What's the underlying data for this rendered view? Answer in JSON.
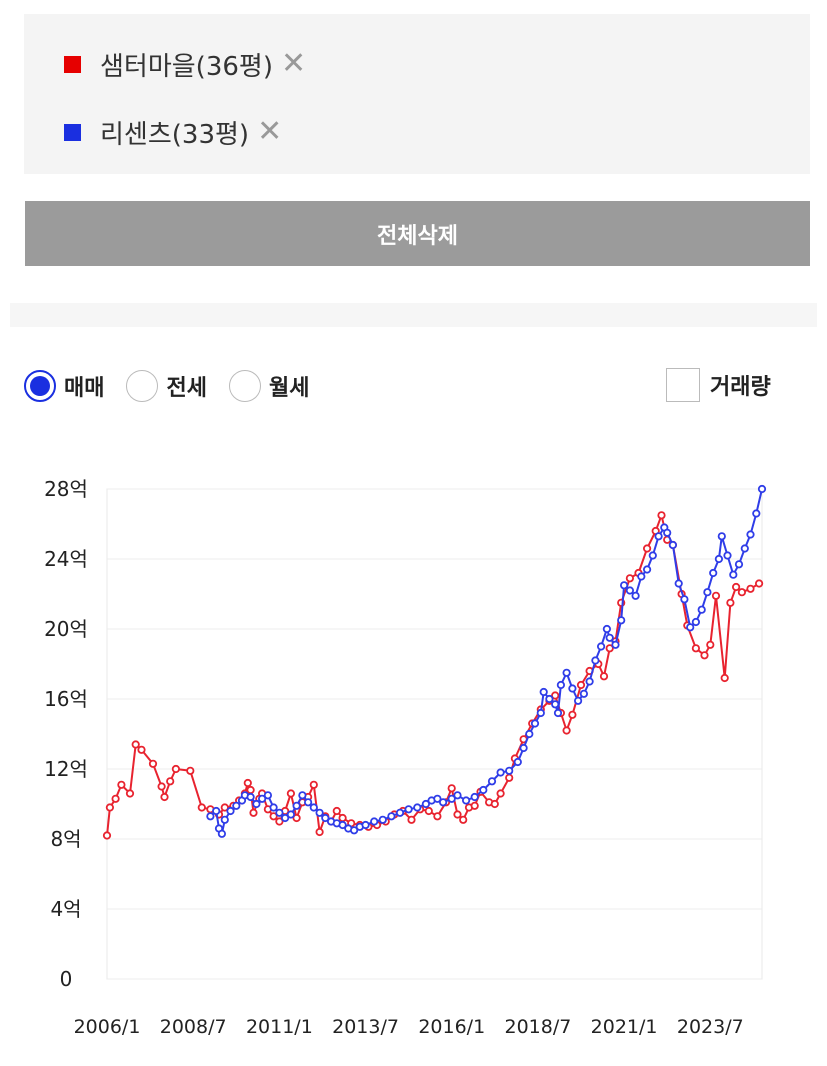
{
  "filters": {
    "items": [
      {
        "label": "샘터마을(36평)",
        "color": "#e60000",
        "remove_icon": "close-icon",
        "remove_glyph": "✕"
      },
      {
        "label": "리센츠(33평)",
        "color": "#1a2fe0",
        "remove_icon": "close-icon",
        "remove_glyph": "✕"
      }
    ],
    "delete_all_label": "전체삭제"
  },
  "options": {
    "trade_types": [
      {
        "label": "매매",
        "selected": true
      },
      {
        "label": "전세",
        "selected": false
      },
      {
        "label": "월세",
        "selected": false
      }
    ],
    "volume": {
      "label": "거래량",
      "checked": false
    }
  },
  "chart_data": {
    "type": "line",
    "y_unit": "억",
    "ylim": [
      0,
      28
    ],
    "y_ticks": [
      "0",
      "4억",
      "8억",
      "12억",
      "16억",
      "20억",
      "24억",
      "28억"
    ],
    "x_ticks": [
      "2006/1",
      "2008/7",
      "2011/1",
      "2013/7",
      "2016/1",
      "2018/7",
      "2021/1",
      "2023/7"
    ],
    "grid": true,
    "series": [
      {
        "name": "샘터마을(36평)",
        "color": "#e8232f",
        "points": [
          [
            "2006-01",
            8.2
          ],
          [
            "2006-02",
            9.8
          ],
          [
            "2006-04",
            10.3
          ],
          [
            "2006-06",
            11.1
          ],
          [
            "2006-09",
            10.6
          ],
          [
            "2006-11",
            13.4
          ],
          [
            "2007-01",
            13.1
          ],
          [
            "2007-05",
            12.3
          ],
          [
            "2007-08",
            11.0
          ],
          [
            "2007-09",
            10.4
          ],
          [
            "2007-11",
            11.3
          ],
          [
            "2008-01",
            12.0
          ],
          [
            "2008-06",
            11.9
          ],
          [
            "2008-10",
            9.8
          ],
          [
            "2009-01",
            9.7
          ],
          [
            "2009-04",
            9.4
          ],
          [
            "2009-06",
            9.8
          ],
          [
            "2009-09",
            9.9
          ],
          [
            "2009-11",
            10.2
          ],
          [
            "2010-01",
            10.6
          ],
          [
            "2010-02",
            11.2
          ],
          [
            "2010-03",
            10.8
          ],
          [
            "2010-04",
            9.5
          ],
          [
            "2010-06",
            10.3
          ],
          [
            "2010-07",
            10.6
          ],
          [
            "2010-09",
            9.7
          ],
          [
            "2010-11",
            9.3
          ],
          [
            "2011-01",
            9.0
          ],
          [
            "2011-03",
            9.6
          ],
          [
            "2011-05",
            10.6
          ],
          [
            "2011-07",
            9.2
          ],
          [
            "2011-09",
            10.1
          ],
          [
            "2011-11",
            10.4
          ],
          [
            "2012-01",
            11.1
          ],
          [
            "2012-03",
            8.4
          ],
          [
            "2012-05",
            9.3
          ],
          [
            "2012-07",
            9.0
          ],
          [
            "2012-09",
            9.6
          ],
          [
            "2012-11",
            9.2
          ],
          [
            "2013-02",
            8.9
          ],
          [
            "2013-05",
            8.8
          ],
          [
            "2013-08",
            8.7
          ],
          [
            "2013-11",
            8.8
          ],
          [
            "2014-02",
            9.0
          ],
          [
            "2014-05",
            9.4
          ],
          [
            "2014-08",
            9.6
          ],
          [
            "2014-11",
            9.1
          ],
          [
            "2015-02",
            9.7
          ],
          [
            "2015-05",
            9.6
          ],
          [
            "2015-08",
            9.3
          ],
          [
            "2015-11",
            10.1
          ],
          [
            "2016-01",
            10.9
          ],
          [
            "2016-03",
            9.4
          ],
          [
            "2016-05",
            9.1
          ],
          [
            "2016-07",
            9.8
          ],
          [
            "2016-09",
            9.9
          ],
          [
            "2016-11",
            10.7
          ],
          [
            "2017-02",
            10.1
          ],
          [
            "2017-04",
            10.0
          ],
          [
            "2017-06",
            10.6
          ],
          [
            "2017-09",
            11.5
          ],
          [
            "2017-11",
            12.6
          ],
          [
            "2018-02",
            13.7
          ],
          [
            "2018-05",
            14.6
          ],
          [
            "2018-08",
            15.4
          ],
          [
            "2018-11",
            15.9
          ],
          [
            "2019-01",
            16.2
          ],
          [
            "2019-03",
            15.2
          ],
          [
            "2019-05",
            14.2
          ],
          [
            "2019-07",
            15.1
          ],
          [
            "2019-10",
            16.8
          ],
          [
            "2020-01",
            17.6
          ],
          [
            "2020-04",
            18.0
          ],
          [
            "2020-06",
            17.3
          ],
          [
            "2020-08",
            18.9
          ],
          [
            "2020-10",
            19.3
          ],
          [
            "2020-12",
            21.5
          ],
          [
            "2021-03",
            22.9
          ],
          [
            "2021-06",
            23.2
          ],
          [
            "2021-09",
            24.6
          ],
          [
            "2021-12",
            25.6
          ],
          [
            "2022-02",
            26.5
          ],
          [
            "2022-04",
            25.1
          ],
          [
            "2022-06",
            24.8
          ],
          [
            "2022-09",
            22.0
          ],
          [
            "2022-11",
            20.2
          ],
          [
            "2023-02",
            18.9
          ],
          [
            "2023-05",
            18.5
          ],
          [
            "2023-07",
            19.1
          ],
          [
            "2023-09",
            21.9
          ],
          [
            "2023-12",
            17.2
          ],
          [
            "2024-02",
            21.5
          ],
          [
            "2024-04",
            22.4
          ],
          [
            "2024-06",
            22.1
          ],
          [
            "2024-09",
            22.3
          ],
          [
            "2024-12",
            22.6
          ]
        ]
      },
      {
        "name": "리센츠(33평)",
        "color": "#2f3de8",
        "points": [
          [
            "2009-01",
            9.3
          ],
          [
            "2009-03",
            9.6
          ],
          [
            "2009-04",
            8.6
          ],
          [
            "2009-05",
            8.3
          ],
          [
            "2009-06",
            9.1
          ],
          [
            "2009-08",
            9.6
          ],
          [
            "2009-10",
            9.9
          ],
          [
            "2009-12",
            10.2
          ],
          [
            "2010-01",
            10.5
          ],
          [
            "2010-03",
            10.4
          ],
          [
            "2010-05",
            10.0
          ],
          [
            "2010-07",
            10.3
          ],
          [
            "2010-09",
            10.5
          ],
          [
            "2010-11",
            9.8
          ],
          [
            "2011-01",
            9.5
          ],
          [
            "2011-03",
            9.2
          ],
          [
            "2011-05",
            9.4
          ],
          [
            "2011-07",
            9.9
          ],
          [
            "2011-09",
            10.5
          ],
          [
            "2011-11",
            10.1
          ],
          [
            "2012-01",
            9.8
          ],
          [
            "2012-03",
            9.5
          ],
          [
            "2012-05",
            9.2
          ],
          [
            "2012-07",
            9.0
          ],
          [
            "2012-09",
            8.9
          ],
          [
            "2012-11",
            8.8
          ],
          [
            "2013-01",
            8.6
          ],
          [
            "2013-03",
            8.5
          ],
          [
            "2013-05",
            8.7
          ],
          [
            "2013-07",
            8.8
          ],
          [
            "2013-10",
            9.0
          ],
          [
            "2014-01",
            9.1
          ],
          [
            "2014-04",
            9.3
          ],
          [
            "2014-07",
            9.5
          ],
          [
            "2014-10",
            9.7
          ],
          [
            "2015-01",
            9.8
          ],
          [
            "2015-04",
            10.0
          ],
          [
            "2015-06",
            10.2
          ],
          [
            "2015-08",
            10.3
          ],
          [
            "2015-10",
            10.1
          ],
          [
            "2016-01",
            10.3
          ],
          [
            "2016-03",
            10.5
          ],
          [
            "2016-06",
            10.2
          ],
          [
            "2016-09",
            10.4
          ],
          [
            "2016-12",
            10.8
          ],
          [
            "2017-03",
            11.3
          ],
          [
            "2017-06",
            11.8
          ],
          [
            "2017-09",
            11.9
          ],
          [
            "2017-12",
            12.4
          ],
          [
            "2018-02",
            13.2
          ],
          [
            "2018-04",
            14.0
          ],
          [
            "2018-06",
            14.6
          ],
          [
            "2018-08",
            15.2
          ],
          [
            "2018-09",
            16.4
          ],
          [
            "2018-11",
            16.0
          ],
          [
            "2019-01",
            15.7
          ],
          [
            "2019-02",
            15.2
          ],
          [
            "2019-03",
            16.8
          ],
          [
            "2019-05",
            17.5
          ],
          [
            "2019-07",
            16.6
          ],
          [
            "2019-09",
            15.9
          ],
          [
            "2019-11",
            16.3
          ],
          [
            "2020-01",
            17.0
          ],
          [
            "2020-03",
            18.2
          ],
          [
            "2020-05",
            19.0
          ],
          [
            "2020-07",
            20.0
          ],
          [
            "2020-08",
            19.5
          ],
          [
            "2020-10",
            19.1
          ],
          [
            "2020-12",
            20.5
          ],
          [
            "2021-01",
            22.5
          ],
          [
            "2021-03",
            22.2
          ],
          [
            "2021-05",
            21.9
          ],
          [
            "2021-07",
            23.0
          ],
          [
            "2021-09",
            23.4
          ],
          [
            "2021-11",
            24.2
          ],
          [
            "2022-01",
            25.3
          ],
          [
            "2022-03",
            25.8
          ],
          [
            "2022-04",
            25.5
          ],
          [
            "2022-06",
            24.8
          ],
          [
            "2022-08",
            22.6
          ],
          [
            "2022-10",
            21.7
          ],
          [
            "2022-12",
            20.1
          ],
          [
            "2023-02",
            20.4
          ],
          [
            "2023-04",
            21.1
          ],
          [
            "2023-06",
            22.1
          ],
          [
            "2023-08",
            23.2
          ],
          [
            "2023-10",
            24.0
          ],
          [
            "2023-11",
            25.3
          ],
          [
            "2024-01",
            24.2
          ],
          [
            "2024-03",
            23.1
          ],
          [
            "2024-05",
            23.7
          ],
          [
            "2024-07",
            24.6
          ],
          [
            "2024-09",
            25.4
          ],
          [
            "2024-11",
            26.6
          ],
          [
            "2025-01",
            28.0
          ]
        ]
      }
    ]
  }
}
